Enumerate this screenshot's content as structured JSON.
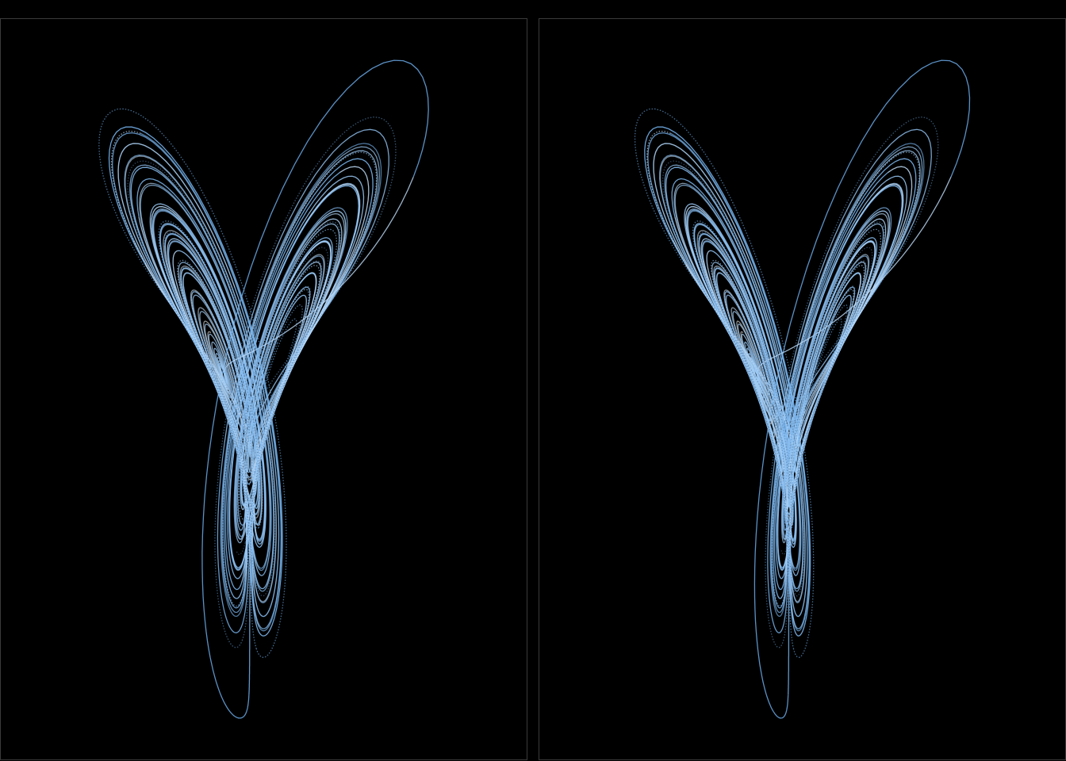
{
  "scene": {
    "background_color": "#000000",
    "panel_border_color": "#3a3a3a",
    "trail_color_primary": "#6fb1f0",
    "trail_color_secondary": "#ffffff",
    "trail_color_dim": "#4a6b8f"
  },
  "panels": [
    {
      "name": "left-view"
    },
    {
      "name": "right-view"
    }
  ]
}
